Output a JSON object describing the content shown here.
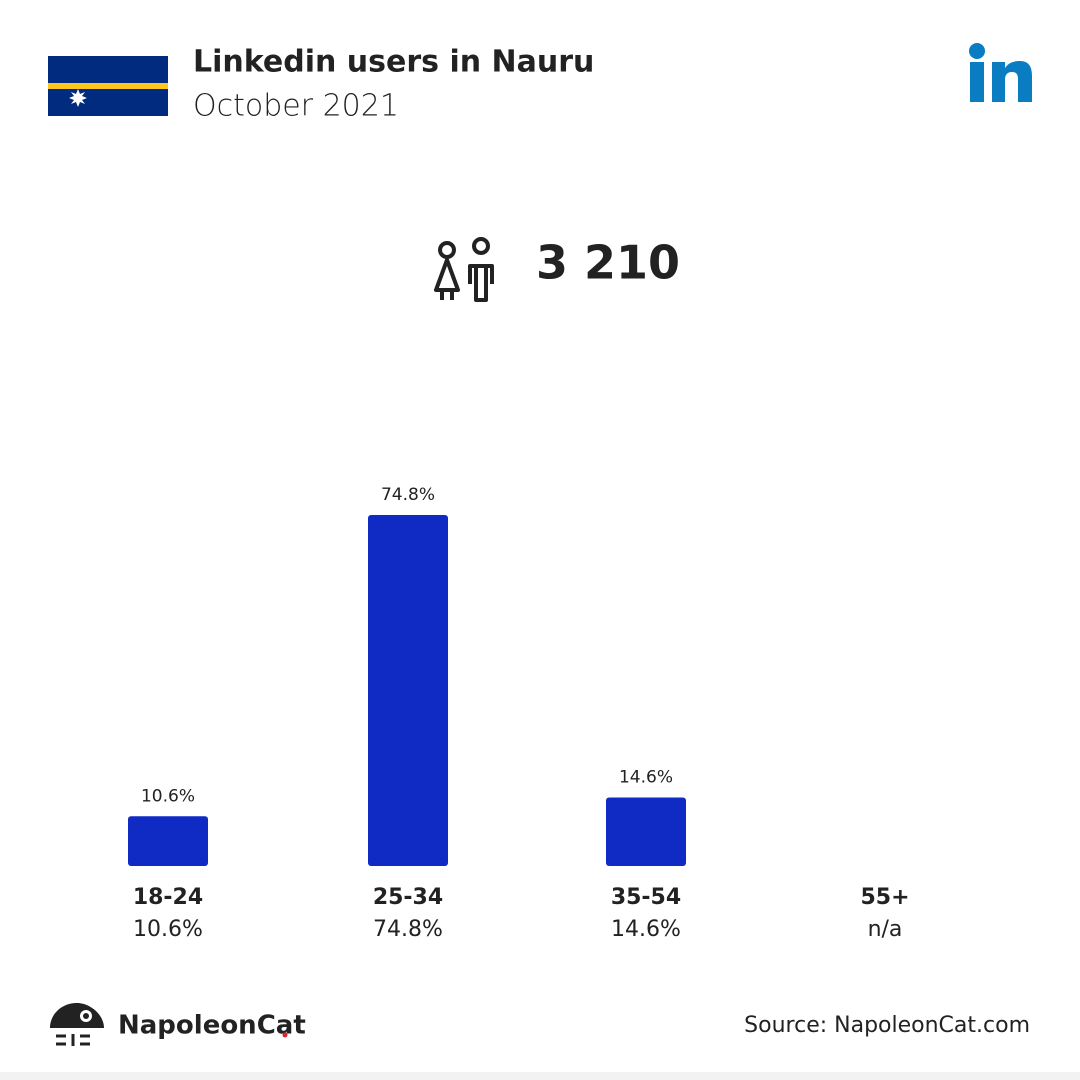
{
  "chart_data": {
    "type": "bar",
    "title": "Linkedin users in Nauru",
    "subtitle": "October 2021",
    "total": "3 210",
    "categories": [
      "18-24",
      "25-34",
      "35-54",
      "55+"
    ],
    "values": [
      10.6,
      74.8,
      14.6,
      null
    ],
    "value_labels": [
      "10.6%",
      "74.8%",
      "14.6%",
      "n/a"
    ],
    "color": "#0f2bc4",
    "brand": "NapoleonCat",
    "source": "Source: NapoleonCat.com"
  }
}
